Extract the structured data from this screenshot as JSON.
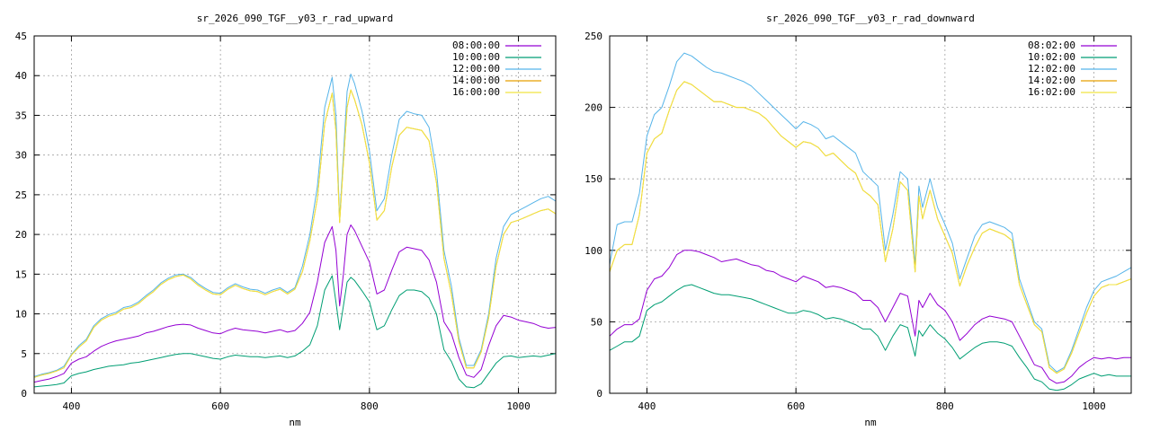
{
  "chart_data": [
    {
      "type": "line",
      "title": "sr_2026_090_TGF__y03_r_rad_upward",
      "xlabel": "nm",
      "ylabel": "",
      "xlim": [
        350,
        1050
      ],
      "ylim": [
        0,
        45
      ],
      "x_ticks": [
        400,
        600,
        800,
        1000
      ],
      "y_ticks": [
        0,
        5,
        10,
        15,
        20,
        25,
        30,
        35,
        40,
        45
      ],
      "grid": true,
      "legend_position": "top-right",
      "x": [
        350,
        360,
        370,
        380,
        390,
        400,
        410,
        420,
        430,
        440,
        450,
        460,
        470,
        480,
        490,
        500,
        510,
        520,
        530,
        540,
        550,
        560,
        570,
        580,
        590,
        600,
        610,
        620,
        630,
        640,
        650,
        660,
        670,
        680,
        690,
        700,
        710,
        720,
        730,
        740,
        750,
        755,
        760,
        765,
        770,
        775,
        780,
        790,
        800,
        810,
        820,
        830,
        840,
        850,
        860,
        870,
        880,
        890,
        900,
        910,
        920,
        930,
        940,
        950,
        960,
        970,
        980,
        990,
        1000,
        1010,
        1020,
        1030,
        1040,
        1050
      ],
      "series": [
        {
          "name": "08:00:00",
          "color": "#9400d3",
          "values": [
            1.4,
            1.6,
            1.8,
            2.1,
            2.5,
            3.8,
            4.3,
            4.6,
            5.3,
            5.9,
            6.3,
            6.6,
            6.8,
            7.0,
            7.2,
            7.6,
            7.8,
            8.1,
            8.4,
            8.6,
            8.7,
            8.6,
            8.2,
            7.9,
            7.6,
            7.5,
            7.9,
            8.2,
            8.0,
            7.9,
            7.8,
            7.6,
            7.8,
            8.0,
            7.7,
            7.9,
            8.8,
            10.2,
            14.0,
            19.0,
            21.0,
            18.0,
            11.0,
            15.0,
            20.0,
            21.2,
            20.5,
            18.5,
            16.5,
            12.5,
            13.0,
            15.5,
            17.8,
            18.4,
            18.2,
            18.0,
            16.8,
            14.0,
            9.0,
            7.5,
            4.5,
            2.3,
            2.0,
            3.0,
            6.0,
            8.5,
            9.8,
            9.6,
            9.2,
            9.0,
            8.8,
            8.4,
            8.2,
            8.3
          ]
        },
        {
          "name": "10:00:00",
          "color": "#009e73",
          "values": [
            0.8,
            0.9,
            1.0,
            1.1,
            1.3,
            2.2,
            2.5,
            2.7,
            3.0,
            3.2,
            3.4,
            3.5,
            3.6,
            3.8,
            3.9,
            4.1,
            4.3,
            4.5,
            4.7,
            4.9,
            5.0,
            5.0,
            4.8,
            4.6,
            4.4,
            4.3,
            4.6,
            4.8,
            4.7,
            4.6,
            4.6,
            4.5,
            4.6,
            4.7,
            4.5,
            4.7,
            5.3,
            6.1,
            8.5,
            13.0,
            14.8,
            11.5,
            8.0,
            11.0,
            14.0,
            14.6,
            14.2,
            12.9,
            11.5,
            8.0,
            8.5,
            10.5,
            12.3,
            13.0,
            13.0,
            12.8,
            12.0,
            10.0,
            5.5,
            4.0,
            1.8,
            0.8,
            0.7,
            1.2,
            2.5,
            3.8,
            4.6,
            4.7,
            4.5,
            4.6,
            4.7,
            4.6,
            4.8,
            5.0
          ]
        },
        {
          "name": "12:00:00",
          "color": "#56b4e9",
          "values": [
            2.1,
            2.4,
            2.6,
            2.9,
            3.4,
            4.9,
            6.0,
            6.8,
            8.5,
            9.4,
            9.9,
            10.2,
            10.8,
            11.0,
            11.5,
            12.3,
            13.0,
            13.9,
            14.5,
            14.9,
            15.0,
            14.6,
            13.8,
            13.2,
            12.7,
            12.6,
            13.3,
            13.8,
            13.4,
            13.1,
            13.0,
            12.6,
            13.0,
            13.3,
            12.7,
            13.3,
            16.0,
            20.0,
            26.0,
            36.0,
            39.8,
            35.0,
            22.0,
            30.0,
            38.0,
            40.2,
            39.0,
            35.5,
            30.5,
            23.0,
            24.5,
            30.0,
            34.5,
            35.5,
            35.2,
            35.0,
            33.5,
            28.0,
            18.0,
            13.5,
            7.0,
            3.5,
            3.5,
            5.5,
            10.0,
            17.0,
            21.0,
            22.5,
            23.0,
            23.5,
            24.0,
            24.5,
            24.8,
            24.2
          ]
        },
        {
          "name": "14:00:00",
          "color": "#e69f00",
          "values": [
            2.0,
            2.3,
            2.5,
            2.8,
            3.2,
            4.8,
            5.8,
            6.6,
            8.3,
            9.2,
            9.7,
            10.0,
            10.6,
            10.8,
            11.3,
            12.1,
            12.8,
            13.7,
            14.3,
            14.7,
            14.9,
            14.4,
            13.6,
            13.0,
            12.5,
            12.4,
            13.1,
            13.6,
            13.2,
            12.9,
            12.8,
            12.4,
            12.8,
            13.1,
            12.5,
            13.1,
            15.3,
            19.2,
            24.5,
            34.0,
            37.8,
            33.0,
            21.5,
            29.0,
            36.0,
            38.2,
            37.0,
            33.8,
            29.0,
            21.8,
            23.0,
            28.5,
            32.5,
            33.5,
            33.3,
            33.1,
            31.8,
            26.5,
            17.0,
            12.5,
            6.5,
            3.2,
            3.2,
            5.2,
            9.5,
            16.0,
            20.0,
            21.5,
            21.8,
            22.2,
            22.6,
            23.0,
            23.2,
            22.6
          ]
        },
        {
          "name": "16:00:00",
          "color": "#f0e442",
          "values": [
            2.0,
            2.3,
            2.5,
            2.8,
            3.2,
            4.8,
            5.8,
            6.6,
            8.3,
            9.2,
            9.7,
            10.0,
            10.6,
            10.8,
            11.3,
            12.1,
            12.8,
            13.7,
            14.3,
            14.7,
            14.9,
            14.4,
            13.6,
            13.0,
            12.5,
            12.4,
            13.1,
            13.6,
            13.2,
            12.9,
            12.8,
            12.4,
            12.8,
            13.1,
            12.5,
            13.1,
            15.3,
            19.2,
            24.5,
            34.0,
            37.8,
            33.0,
            21.5,
            29.0,
            36.0,
            38.2,
            37.0,
            33.8,
            29.0,
            21.8,
            23.0,
            28.5,
            32.5,
            33.5,
            33.3,
            33.1,
            31.8,
            26.5,
            17.0,
            12.5,
            6.5,
            3.2,
            3.2,
            5.2,
            9.5,
            16.0,
            20.0,
            21.5,
            21.8,
            22.2,
            22.6,
            23.0,
            23.2,
            22.6
          ]
        }
      ]
    },
    {
      "type": "line",
      "title": "sr_2026_090_TGF__y03_r_rad_downward",
      "xlabel": "nm",
      "ylabel": "",
      "xlim": [
        350,
        1050
      ],
      "ylim": [
        0,
        250
      ],
      "x_ticks": [
        400,
        600,
        800,
        1000
      ],
      "y_ticks": [
        0,
        50,
        100,
        150,
        200,
        250
      ],
      "grid": true,
      "legend_position": "top-right",
      "x": [
        350,
        360,
        370,
        380,
        390,
        400,
        410,
        420,
        430,
        440,
        450,
        460,
        470,
        480,
        490,
        500,
        510,
        520,
        530,
        540,
        550,
        560,
        570,
        580,
        590,
        600,
        610,
        620,
        630,
        640,
        650,
        660,
        670,
        680,
        690,
        700,
        710,
        720,
        730,
        740,
        750,
        760,
        765,
        770,
        780,
        790,
        800,
        810,
        820,
        830,
        840,
        850,
        860,
        870,
        880,
        890,
        900,
        910,
        920,
        930,
        940,
        950,
        960,
        970,
        980,
        990,
        1000,
        1010,
        1020,
        1030,
        1040,
        1050
      ],
      "series": [
        {
          "name": "08:02:00",
          "color": "#9400d3",
          "values": [
            40,
            45,
            48,
            48,
            52,
            72,
            80,
            82,
            88,
            97,
            100,
            100,
            99,
            97,
            95,
            92,
            93,
            94,
            92,
            90,
            89,
            86,
            85,
            82,
            80,
            78,
            82,
            80,
            78,
            74,
            75,
            74,
            72,
            70,
            65,
            65,
            60,
            50,
            60,
            70,
            68,
            40,
            65,
            60,
            70,
            62,
            58,
            50,
            37,
            42,
            48,
            52,
            54,
            53,
            52,
            50,
            40,
            30,
            20,
            18,
            10,
            7,
            8,
            12,
            18,
            22,
            25,
            24,
            25,
            24,
            25,
            25
          ]
        },
        {
          "name": "10:02:00",
          "color": "#009e73",
          "values": [
            30,
            33,
            36,
            36,
            40,
            58,
            62,
            64,
            68,
            72,
            75,
            76,
            74,
            72,
            70,
            69,
            69,
            68,
            67,
            66,
            64,
            62,
            60,
            58,
            56,
            56,
            58,
            57,
            55,
            52,
            53,
            52,
            50,
            48,
            45,
            45,
            40,
            30,
            40,
            48,
            46,
            26,
            44,
            40,
            48,
            42,
            38,
            32,
            24,
            28,
            32,
            35,
            36,
            36,
            35,
            33,
            25,
            18,
            10,
            8,
            3,
            2,
            3,
            6,
            10,
            12,
            14,
            12,
            13,
            12,
            12,
            12
          ]
        },
        {
          "name": "12:02:00",
          "color": "#56b4e9",
          "values": [
            90,
            118,
            120,
            120,
            140,
            180,
            195,
            200,
            215,
            232,
            238,
            236,
            232,
            228,
            225,
            224,
            222,
            220,
            218,
            215,
            210,
            205,
            200,
            195,
            190,
            185,
            190,
            188,
            185,
            178,
            180,
            176,
            172,
            168,
            155,
            150,
            145,
            100,
            125,
            155,
            150,
            90,
            145,
            130,
            150,
            130,
            118,
            105,
            80,
            95,
            110,
            118,
            120,
            118,
            116,
            112,
            80,
            65,
            50,
            45,
            20,
            15,
            18,
            30,
            45,
            60,
            72,
            78,
            80,
            82,
            85,
            88
          ]
        },
        {
          "name": "14:02:00",
          "color": "#e69f00",
          "values": [
            85,
            100,
            104,
            104,
            125,
            168,
            178,
            182,
            198,
            212,
            218,
            216,
            212,
            208,
            204,
            204,
            202,
            200,
            200,
            198,
            196,
            192,
            186,
            180,
            176,
            172,
            176,
            175,
            172,
            166,
            168,
            163,
            158,
            154,
            142,
            138,
            132,
            92,
            115,
            148,
            142,
            85,
            138,
            122,
            142,
            122,
            110,
            98,
            75,
            90,
            102,
            112,
            115,
            113,
            111,
            107,
            76,
            62,
            48,
            43,
            18,
            14,
            17,
            28,
            42,
            56,
            68,
            74,
            76,
            76,
            78,
            80
          ]
        },
        {
          "name": "16:02:00",
          "color": "#f0e442",
          "values": [
            85,
            100,
            104,
            104,
            125,
            168,
            178,
            182,
            198,
            212,
            218,
            216,
            212,
            208,
            204,
            204,
            202,
            200,
            200,
            198,
            196,
            192,
            186,
            180,
            176,
            172,
            176,
            175,
            172,
            166,
            168,
            163,
            158,
            154,
            142,
            138,
            132,
            92,
            115,
            148,
            142,
            85,
            138,
            122,
            142,
            122,
            110,
            98,
            75,
            90,
            102,
            112,
            115,
            113,
            111,
            107,
            76,
            62,
            48,
            43,
            18,
            14,
            17,
            28,
            42,
            56,
            68,
            74,
            76,
            76,
            78,
            80
          ]
        }
      ]
    }
  ]
}
